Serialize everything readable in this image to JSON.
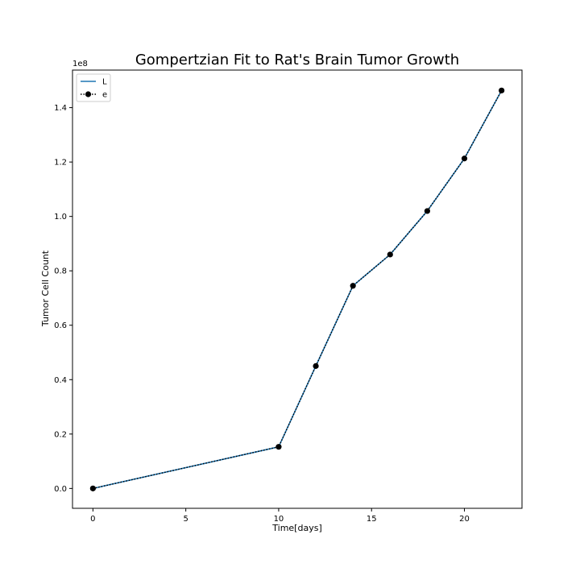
{
  "chart_data": {
    "type": "line",
    "title": "Gompertzian Fit to Rat's Brain Tumor Growth",
    "xlabel": "Time[days]",
    "ylabel": "Tumor Cell Count",
    "y_offset_label": "1e8",
    "xlim": [
      -1.1,
      23.1
    ],
    "ylim": [
      -7300000,
      153800000
    ],
    "x_ticks": [
      0,
      5,
      10,
      15,
      20
    ],
    "x_tick_labels": [
      "0",
      "5",
      "10",
      "15",
      "20"
    ],
    "y_ticks": [
      0,
      20000000,
      40000000,
      60000000,
      80000000,
      100000000,
      120000000,
      140000000
    ],
    "y_tick_labels": [
      "0.0",
      "0.2",
      "0.4",
      "0.6",
      "0.8",
      "1.0",
      "1.2",
      "1.4"
    ],
    "grid": false,
    "legend": {
      "placement": "top-left"
    },
    "series": [
      {
        "name": "L",
        "style": "solid",
        "color": "#1f77b4",
        "marker": "none",
        "x": [
          0,
          10,
          12,
          14,
          16,
          18,
          20,
          22
        ],
        "y": [
          0,
          15300000,
          45000000,
          74500000,
          86000000,
          102000000,
          121300000,
          146300000
        ]
      },
      {
        "name": "e",
        "style": "dotted",
        "color": "#000000",
        "marker": "circle",
        "x": [
          0,
          10,
          12,
          14,
          16,
          18,
          20,
          22
        ],
        "y": [
          0,
          15300000,
          45000000,
          74500000,
          86000000,
          102000000,
          121300000,
          146300000
        ]
      }
    ]
  }
}
